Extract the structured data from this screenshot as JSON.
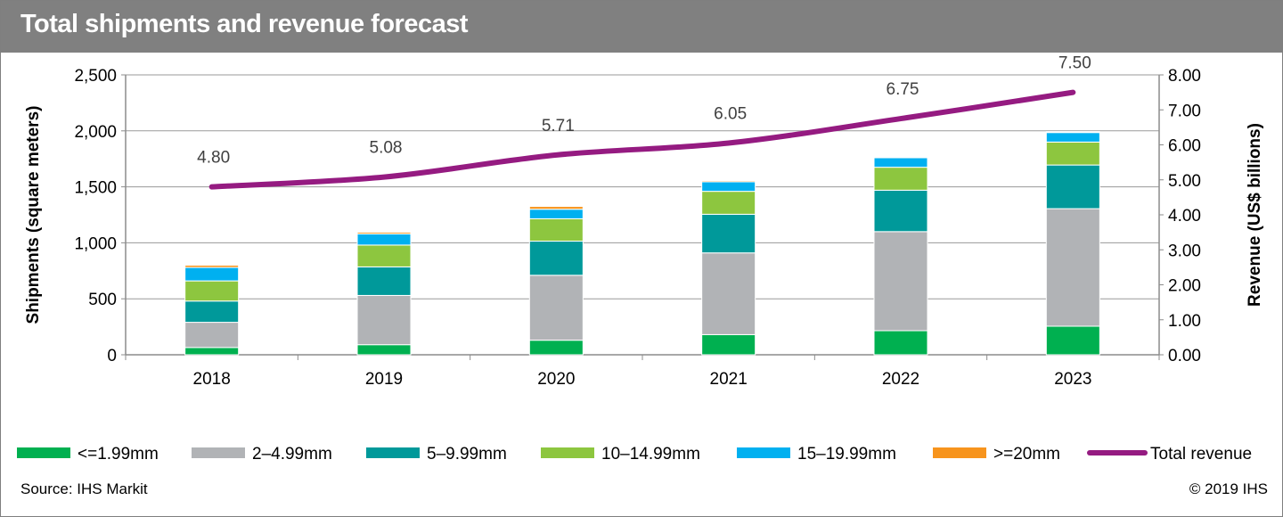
{
  "title": "Total shipments and revenue forecast",
  "footer": {
    "source": "Source: IHS Markit",
    "copyright": "© 2019 IHS"
  },
  "chart_data": {
    "type": "bar",
    "stacked": true,
    "categories": [
      "2018",
      "2019",
      "2020",
      "2021",
      "2022",
      "2023"
    ],
    "series": [
      {
        "name": "<=1.99mm",
        "color": "#00b050",
        "values": [
          65,
          90,
          130,
          180,
          215,
          255
        ]
      },
      {
        "name": "2–4.99mm",
        "color": "#b1b3b6",
        "values": [
          225,
          440,
          580,
          730,
          885,
          1050
        ]
      },
      {
        "name": "5–9.99mm",
        "color": "#00999a",
        "values": [
          190,
          255,
          305,
          345,
          370,
          390
        ]
      },
      {
        "name": "10–14.99mm",
        "color": "#8dc63f",
        "values": [
          180,
          195,
          200,
          205,
          205,
          205
        ]
      },
      {
        "name": "15–19.99mm",
        "color": "#00b0f0",
        "values": [
          120,
          100,
          85,
          85,
          85,
          85
        ]
      },
      {
        "name": ">=20mm",
        "color": "#f7941d",
        "values": [
          20,
          15,
          25,
          10,
          8,
          8
        ]
      }
    ],
    "line_series": {
      "name": "Total revenue",
      "color": "#951b81",
      "axis": "right",
      "values": [
        4.8,
        5.08,
        5.71,
        6.05,
        6.75,
        7.5
      ],
      "labels": [
        "4.80",
        "5.08",
        "5.71",
        "6.05",
        "6.75",
        "7.50"
      ]
    },
    "y_left": {
      "label": "Shipments (square meters)",
      "min": 0,
      "max": 2500,
      "step": 500,
      "ticks": [
        "0",
        "500",
        "1,000",
        "1,500",
        "2,000",
        "2,500"
      ]
    },
    "y_right": {
      "label": "Revenue (US$ billions)",
      "min": 0,
      "max": 8,
      "step": 1,
      "ticks": [
        "0.00",
        "1.00",
        "2.00",
        "3.00",
        "4.00",
        "5.00",
        "6.00",
        "7.00",
        "8.00"
      ]
    },
    "grid": true,
    "legend_position": "bottom"
  }
}
